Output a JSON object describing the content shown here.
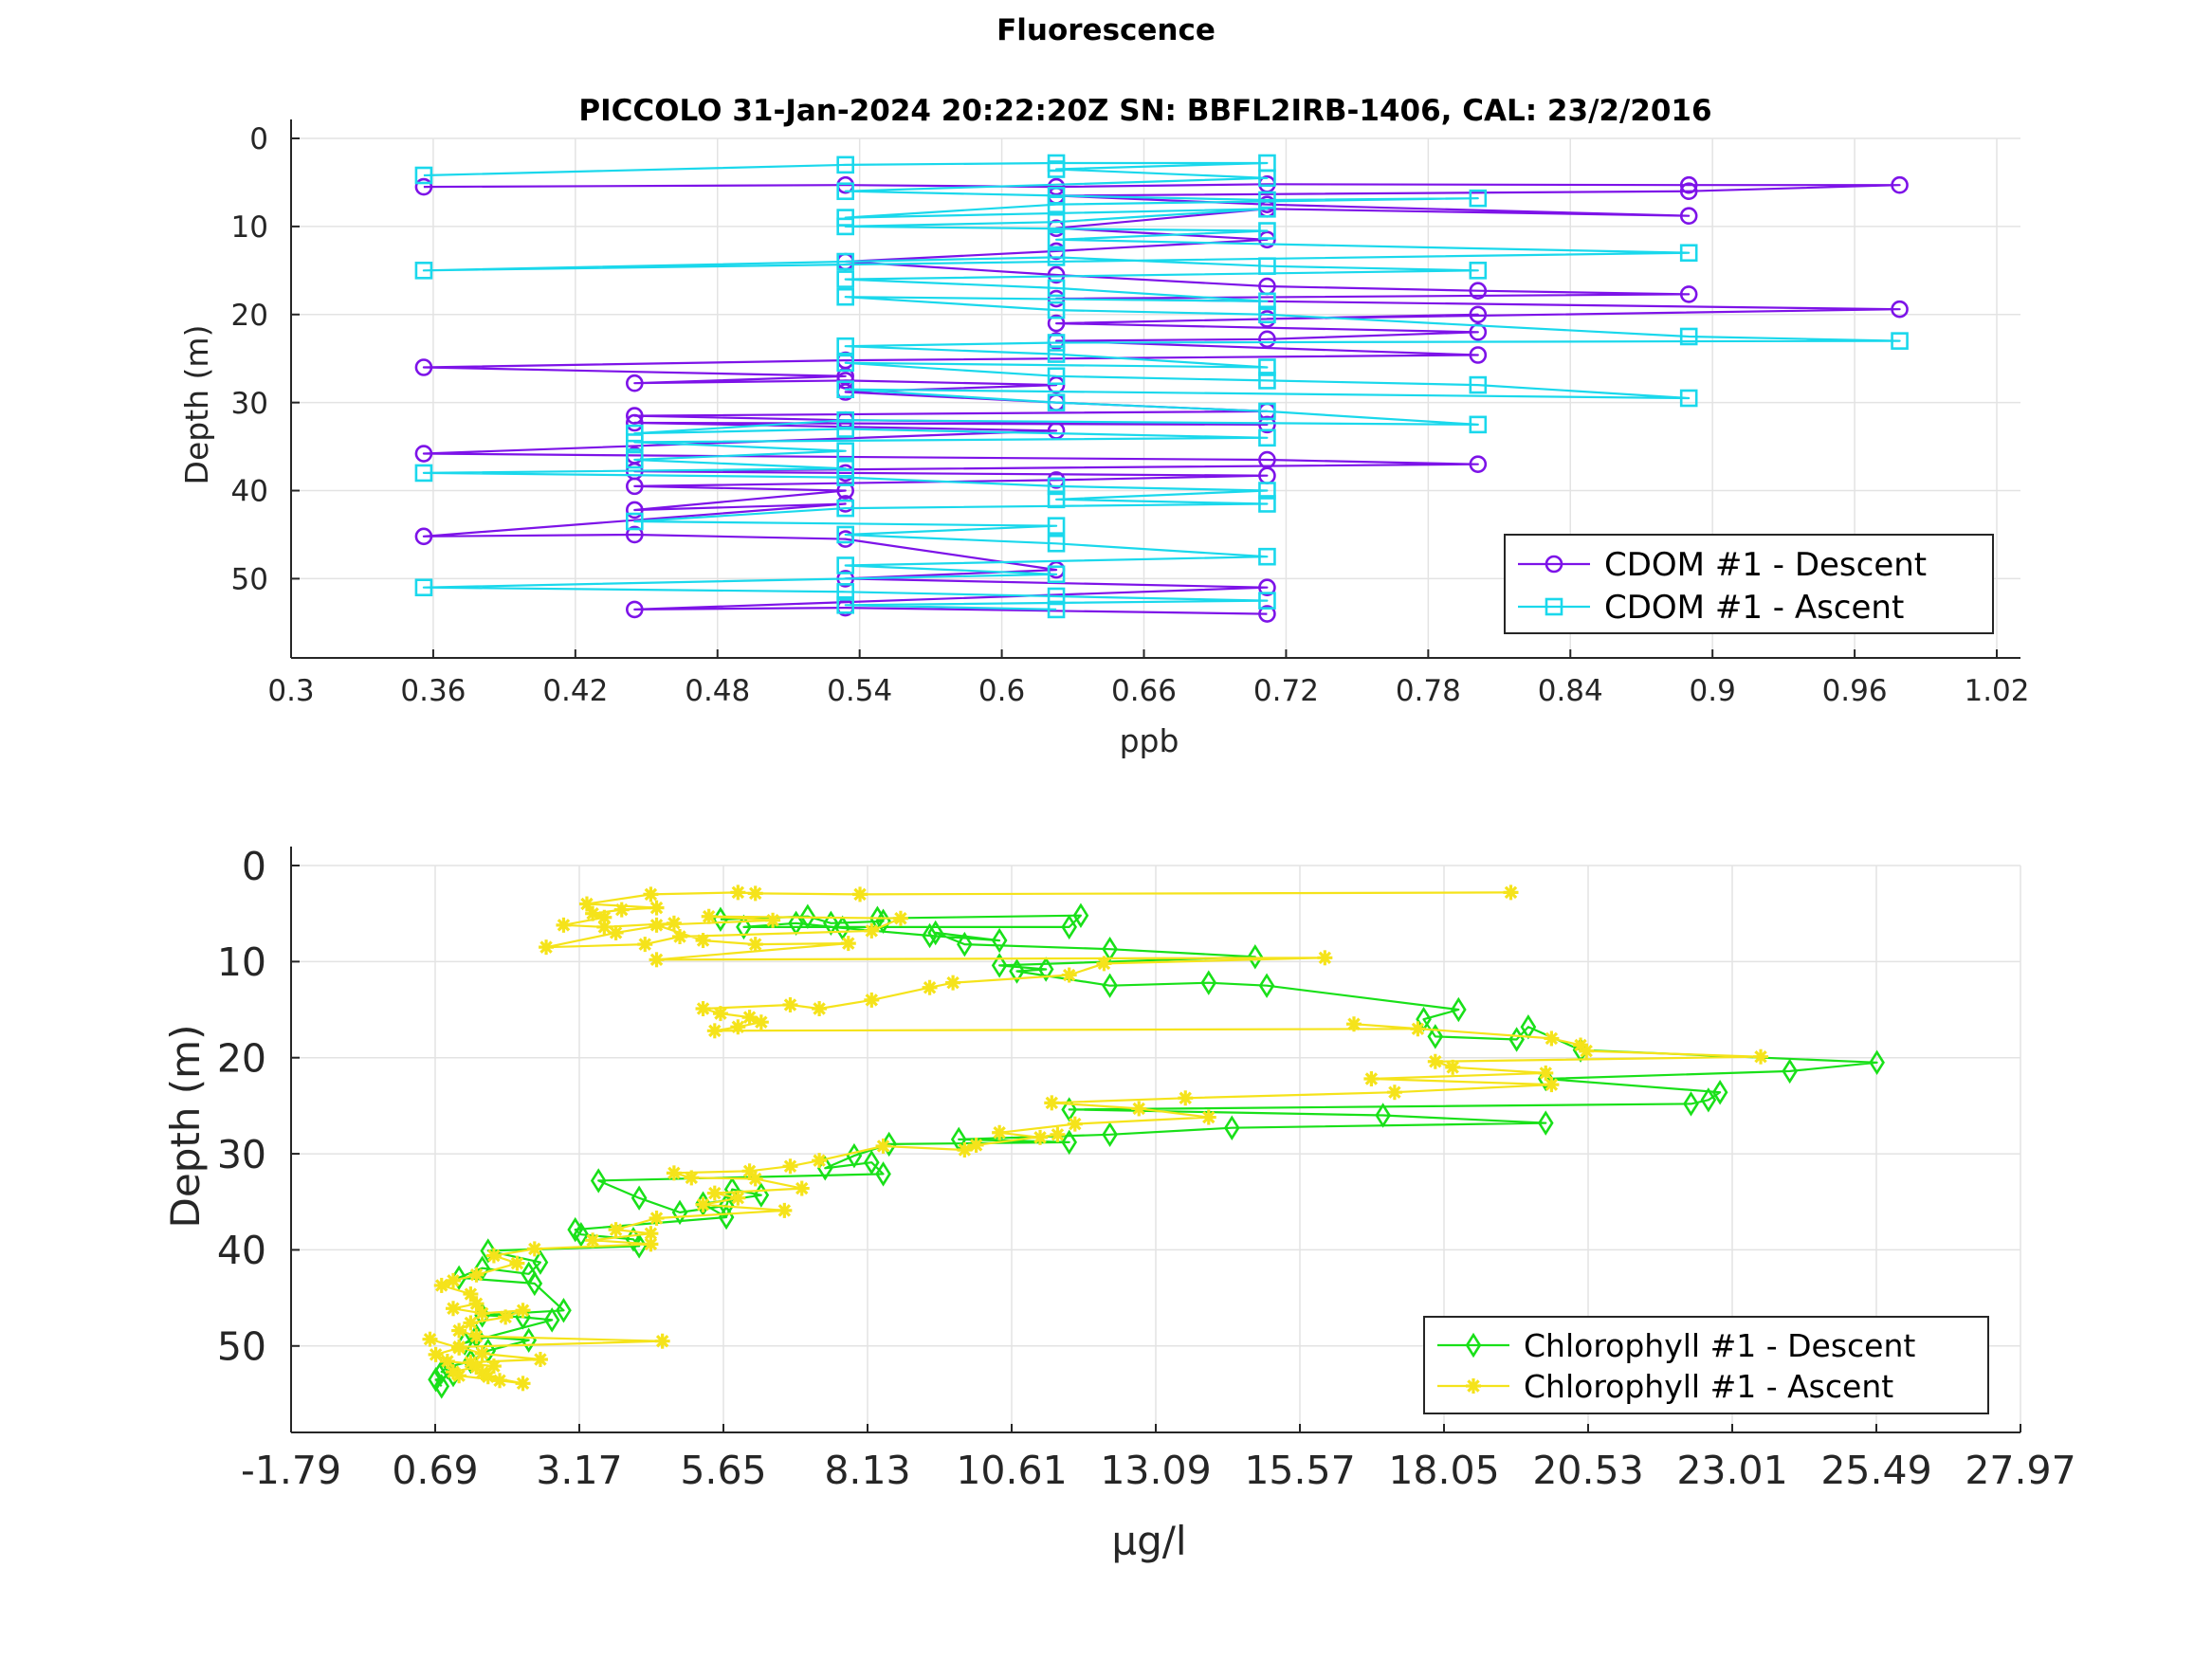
{
  "figure": {
    "suptitle": "Fluorescence"
  },
  "chart_data": [
    {
      "type": "line",
      "title": "PICCOLO 31-Jan-2024 20:22:20Z         SN: BBFL2IRB-1406, CAL: 23/2/2016",
      "xlabel": "ppb",
      "ylabel": "Depth (m)",
      "xlim": [
        0.3,
        1.03
      ],
      "ylim": [
        0,
        59
      ],
      "y_reversed": true,
      "grid": true,
      "legend_position": "bottom-right",
      "xticks": [
        "0.3",
        "0.36",
        "0.42",
        "0.48",
        "0.54",
        "0.6",
        "0.66",
        "0.72",
        "0.78",
        "0.84",
        "0.9",
        "0.96",
        "1.02"
      ],
      "yticks": [
        "0",
        "10",
        "20",
        "30",
        "40",
        "50"
      ],
      "series": [
        {
          "name": "CDOM #1 - Descent",
          "color": "#7d13e8",
          "marker": "circle",
          "x": [
            0.356,
            0.534,
            0.623,
            0.712,
            0.89,
            0.979,
            0.89,
            0.623,
            0.712,
            0.89,
            0.712,
            0.623,
            0.712,
            0.623,
            0.534,
            0.623,
            0.712,
            0.801,
            0.89,
            0.623,
            0.979,
            0.712,
            0.801,
            0.623,
            0.801,
            0.712,
            0.623,
            0.801,
            0.534,
            0.356,
            0.534,
            0.445,
            0.534,
            0.623,
            0.534,
            0.623,
            0.712,
            0.445,
            0.534,
            0.712,
            0.445,
            0.623,
            0.356,
            0.445,
            0.712,
            0.801,
            0.445,
            0.534,
            0.712,
            0.623,
            0.445,
            0.534,
            0.445,
            0.534,
            0.356,
            0.445,
            0.534,
            0.623,
            0.534,
            0.712,
            0.445,
            0.534,
            0.712
          ],
          "y": [
            5.5,
            5.3,
            5.5,
            5.2,
            5.3,
            5.3,
            6.0,
            6.5,
            7.5,
            8.8,
            8.0,
            10.2,
            11.5,
            12.8,
            14.0,
            15.5,
            16.8,
            17.3,
            17.7,
            18.2,
            19.4,
            20.5,
            20.0,
            21.0,
            22.0,
            22.8,
            23.0,
            24.6,
            25.2,
            26.0,
            27.0,
            27.8,
            27.5,
            28.0,
            28.8,
            30.0,
            31.0,
            31.5,
            32.0,
            32.5,
            32.3,
            33.2,
            35.8,
            36.0,
            36.5,
            37.0,
            37.8,
            38.0,
            38.3,
            38.8,
            39.5,
            40.0,
            42.2,
            41.5,
            45.2,
            45.0,
            45.5,
            49.0,
            50.0,
            51.0,
            53.5,
            53.3,
            54.0
          ]
        },
        {
          "name": "CDOM #1 - Ascent",
          "color": "#1ad8ec",
          "marker": "square",
          "x": [
            0.356,
            0.534,
            0.623,
            0.712,
            0.623,
            0.712,
            0.534,
            0.623,
            0.712,
            0.801,
            0.623,
            0.534,
            0.712,
            0.623,
            0.534,
            0.712,
            0.623,
            0.89,
            0.356,
            0.534,
            0.623,
            0.712,
            0.801,
            0.534,
            0.623,
            0.712,
            0.534,
            0.623,
            0.712,
            0.89,
            0.979,
            0.623,
            0.534,
            0.623,
            0.712,
            0.534,
            0.623,
            0.712,
            0.801,
            0.89,
            0.534,
            0.623,
            0.712,
            0.801,
            0.534,
            0.445,
            0.534,
            0.712,
            0.445,
            0.534,
            0.445,
            0.534,
            0.356,
            0.534,
            0.623,
            0.712,
            0.623,
            0.712,
            0.534,
            0.445,
            0.623,
            0.534,
            0.623,
            0.712,
            0.534,
            0.623,
            0.356,
            0.534,
            0.623,
            0.712,
            0.534,
            0.623
          ],
          "y": [
            4.2,
            3.0,
            2.8,
            2.8,
            3.5,
            4.5,
            6.0,
            6.5,
            7.0,
            6.8,
            7.5,
            9.0,
            8.0,
            9.5,
            10.0,
            10.5,
            11.5,
            13.0,
            15.0,
            14.0,
            13.5,
            14.5,
            15.0,
            16.0,
            17.0,
            18.5,
            18.0,
            19.5,
            20.0,
            22.5,
            23.0,
            23.2,
            23.6,
            24.5,
            26.0,
            25.5,
            27.0,
            27.5,
            28.0,
            29.5,
            28.5,
            30.0,
            31.0,
            32.5,
            32.0,
            33.5,
            33.0,
            34.0,
            34.5,
            35.5,
            36.5,
            37.5,
            38.0,
            38.5,
            39.5,
            40.0,
            41.0,
            41.5,
            42.0,
            43.5,
            44.0,
            45.0,
            46.0,
            47.5,
            48.5,
            49.5,
            51.0,
            51.5,
            52.0,
            52.5,
            53.0,
            53.5
          ]
        }
      ]
    },
    {
      "type": "line",
      "title": "",
      "xlabel": "µg/l",
      "ylabel": "Depth (m)",
      "xlim": [
        -1.79,
        27.97
      ],
      "ylim": [
        0,
        59
      ],
      "y_reversed": true,
      "grid": true,
      "legend_position": "bottom-right",
      "xticks": [
        "-1.79",
        "0.69",
        "3.17",
        "5.65",
        "8.13",
        "10.61",
        "13.09",
        "15.57",
        "18.05",
        "20.53",
        "23.01",
        "25.49",
        "27.97"
      ],
      "yticks": [
        "0",
        "10",
        "20",
        "30",
        "40",
        "50"
      ],
      "series": [
        {
          "name": "Chlorophyll #1 - Descent",
          "color": "#19e019",
          "marker": "diamond",
          "x": [
            5.6,
            7.1,
            7.5,
            8.4,
            8.3,
            11.8,
            11.6,
            6.0,
            6.9,
            7.7,
            9.2,
            10.4,
            9.3,
            9.8,
            12.3,
            14.8,
            10.4,
            11.2,
            10.7,
            12.3,
            14.0,
            15.0,
            18.3,
            17.7,
            17.9,
            19.3,
            19.5,
            20.4,
            25.5,
            24.0,
            19.8,
            22.8,
            22.6,
            22.3,
            11.6,
            17.0,
            19.8,
            14.4,
            12.3,
            9.7,
            11.6,
            8.5,
            7.9,
            7.4,
            8.2,
            8.4,
            3.5,
            4.2,
            4.9,
            5.7,
            5.8,
            6.3,
            5.3,
            5.7,
            3.1,
            3.2,
            4.1,
            4.2,
            1.6,
            2.5,
            2.3,
            1.5,
            1.1,
            2.4,
            2.9,
            1.5,
            2.2,
            2.7,
            1.2,
            1.4,
            2.3,
            1.6,
            1.3,
            0.9,
            0.8,
            1.0,
            0.7,
            0.8
          ],
          "y": [
            5.6,
            5.3,
            6.0,
            5.8,
            5.5,
            5.2,
            6.4,
            6.4,
            6.0,
            6.5,
            7.3,
            7.8,
            7.0,
            8.2,
            8.7,
            9.5,
            10.4,
            10.8,
            11.0,
            12.5,
            12.2,
            12.5,
            15.0,
            16.0,
            17.8,
            18.1,
            16.8,
            19.2,
            20.5,
            21.4,
            22.2,
            23.6,
            24.4,
            24.8,
            25.4,
            26.0,
            26.8,
            27.3,
            28.0,
            28.5,
            28.8,
            29.0,
            30.2,
            31.5,
            30.9,
            32.1,
            32.8,
            34.6,
            36.1,
            35.4,
            33.7,
            34.3,
            35.2,
            36.6,
            37.9,
            38.4,
            38.9,
            39.6,
            40.1,
            41.3,
            42.5,
            41.9,
            42.9,
            43.5,
            46.3,
            46.8,
            47.0,
            47.3,
            49.7,
            49.0,
            49.4,
            50.5,
            51.6,
            52.2,
            52.7,
            53.0,
            53.5,
            54.2
          ]
        },
        {
          "name": "Chlorophyll #1 - Ascent",
          "color": "#f5e31b",
          "marker": "asterisk",
          "x": [
            19.2,
            8.0,
            6.2,
            5.9,
            4.4,
            3.3,
            4.5,
            3.9,
            3.4,
            3.6,
            2.9,
            3.6,
            4.8,
            3.8,
            2.6,
            4.3,
            4.9,
            8.2,
            8.7,
            5.4,
            6.5,
            4.5,
            5.3,
            6.2,
            7.8,
            4.5,
            16.0,
            12.2,
            11.6,
            9.6,
            9.2,
            8.2,
            7.3,
            6.8,
            5.3,
            5.6,
            6.1,
            6.3,
            5.9,
            5.5,
            17.6,
            16.5,
            19.9,
            20.4,
            20.5,
            23.5,
            17.9,
            18.2,
            19.8,
            16.8,
            19.9,
            17.2,
            13.6,
            11.3,
            12.8,
            14.0,
            11.7,
            10.4,
            11.1,
            11.4,
            10.0,
            9.8,
            8.4,
            7.3,
            6.8,
            6.1,
            4.8,
            5.1,
            6.2,
            7.0,
            5.5,
            5.9,
            5.3,
            6.7,
            4.5,
            3.8,
            4.4,
            3.4,
            4.4,
            2.4,
            1.7,
            2.1,
            1.4,
            1.0,
            0.8,
            1.3,
            1.4,
            1.0,
            1.5,
            2.2,
            1.9,
            1.3,
            1.1,
            1.4,
            4.6,
            1.1,
            1.5,
            2.5,
            1.3,
            1.4,
            1.0,
            1.1,
            1.8,
            2.2,
            1.6,
            1.5,
            1.7,
            0.9,
            0.7,
            1.1,
            0.6
          ],
          "y": [
            2.8,
            3.0,
            2.9,
            2.8,
            3.0,
            4.0,
            4.4,
            4.6,
            5.0,
            5.4,
            6.2,
            6.4,
            6.0,
            7.0,
            8.5,
            8.2,
            7.4,
            6.8,
            5.5,
            5.3,
            5.7,
            6.2,
            7.8,
            8.2,
            8.1,
            9.8,
            9.6,
            10.2,
            11.4,
            12.2,
            12.7,
            14.0,
            14.9,
            14.5,
            14.9,
            15.4,
            15.8,
            16.3,
            16.8,
            17.2,
            17.0,
            16.5,
            18.0,
            18.7,
            19.3,
            19.9,
            20.4,
            21.0,
            21.6,
            22.2,
            22.8,
            23.6,
            24.2,
            24.7,
            25.3,
            26.2,
            26.9,
            27.8,
            28.3,
            28.0,
            29.1,
            29.6,
            29.2,
            30.7,
            31.3,
            31.8,
            32.0,
            32.5,
            32.6,
            33.6,
            34.1,
            34.6,
            35.3,
            35.9,
            36.7,
            37.9,
            38.3,
            39.0,
            39.4,
            39.9,
            40.6,
            41.4,
            42.6,
            43.2,
            43.7,
            44.6,
            45.6,
            46.1,
            46.6,
            46.3,
            47.0,
            47.6,
            48.4,
            49.0,
            49.5,
            50.1,
            50.8,
            51.4,
            51.7,
            52.2,
            52.7,
            53.1,
            53.6,
            53.9,
            53.2,
            52.8,
            52.1,
            51.6,
            50.9,
            50.2,
            49.3
          ]
        }
      ]
    }
  ]
}
